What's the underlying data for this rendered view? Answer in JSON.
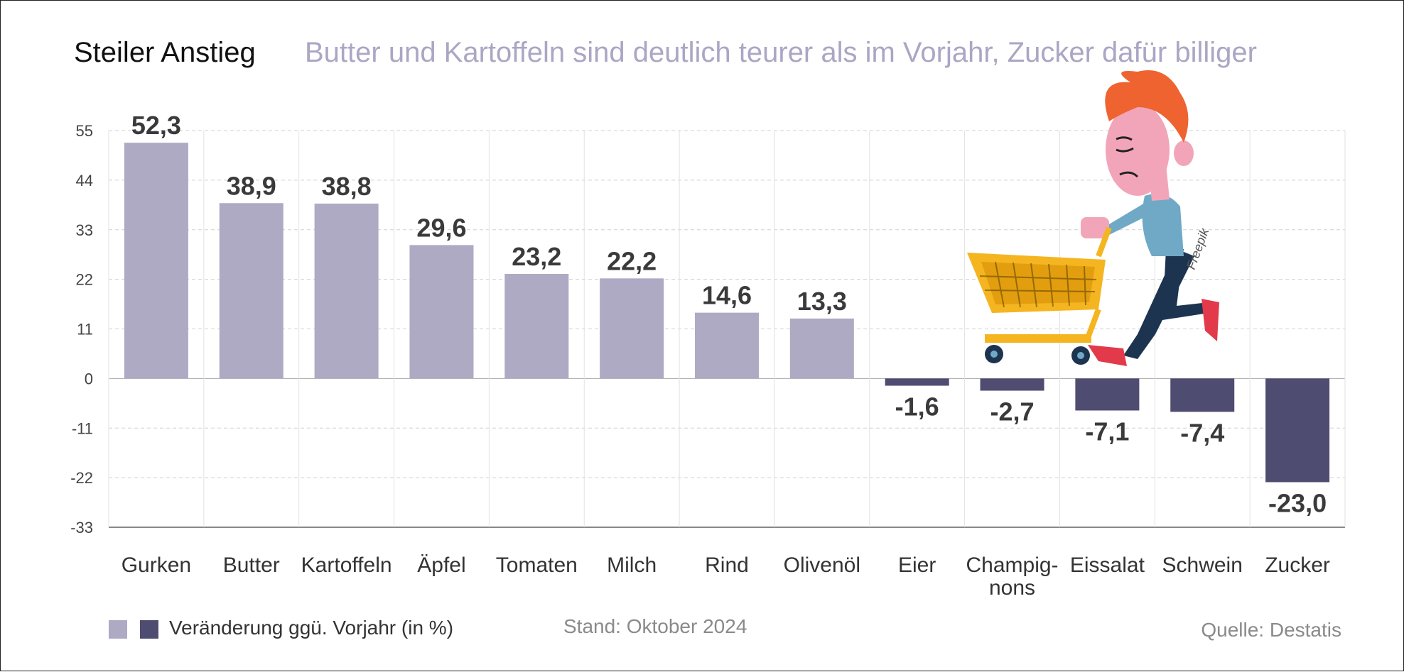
{
  "title": "Steiler Anstieg",
  "subtitle": "Butter und Kartoffeln sind deutlich teurer als im Vorjahr, Zucker dafür billiger",
  "legend_label": "Veränderung ggü. Vorjahr (in %)",
  "stand": "Stand: Oktober 2024",
  "source": "Quelle: Destatis",
  "credit": "Freepik",
  "colors": {
    "positive": "#aeaac3",
    "negative": "#4f4c72",
    "grid": "#d0d0d0",
    "axis": "#999999"
  },
  "chart_data": {
    "type": "bar",
    "categories": [
      "Gurken",
      "Butter",
      "Kartoffeln",
      "Äpfel",
      "Tomaten",
      "Milch",
      "Rind",
      "Olivenöl",
      "Eier",
      "Champig-\nnons",
      "Eissalat",
      "Schwein",
      "Zucker"
    ],
    "values": [
      52.3,
      38.9,
      38.8,
      29.6,
      23.2,
      22.2,
      14.6,
      13.3,
      -1.6,
      -2.7,
      -7.1,
      -7.4,
      -23.0
    ],
    "value_labels": [
      "52,3",
      "38,9",
      "38,8",
      "29,6",
      "23,2",
      "22,2",
      "14,6",
      "13,3",
      "-1,6",
      "-2,7",
      "-7,1",
      "-7,4",
      "-23,0"
    ],
    "yticks": [
      55,
      44,
      33,
      22,
      11,
      0,
      -11,
      -22,
      -33
    ],
    "ylim": [
      -33,
      55
    ],
    "grid": true,
    "legend_position": "bottom-left"
  }
}
